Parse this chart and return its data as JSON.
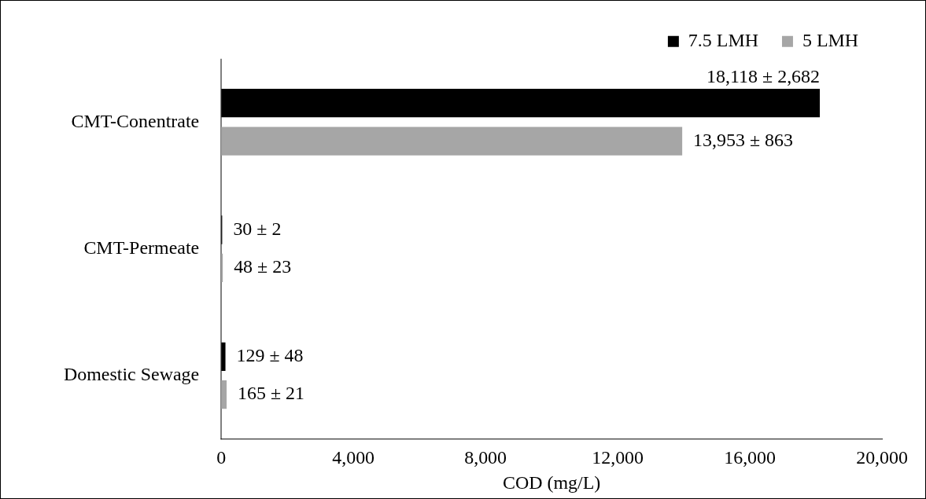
{
  "chart_data": {
    "type": "bar",
    "orientation": "horizontal",
    "xlabel": "COD (mg/L)",
    "categories": [
      "CMT-Conentrate",
      "CMT-Permeate",
      "Domestic Sewage"
    ],
    "series": [
      {
        "name": "7.5 LMH",
        "color": "#000000",
        "values": [
          18118,
          30,
          129
        ],
        "value_labels": [
          "18,118 ± 2,682",
          "30 ± 2",
          "129 ± 48"
        ]
      },
      {
        "name": "5 LMH",
        "color": "#a6a6a6",
        "values": [
          13953,
          48,
          165
        ],
        "value_labels": [
          "13,953 ± 863",
          "48 ± 23",
          "165 ± 21"
        ]
      }
    ],
    "xlim": [
      0,
      20000
    ],
    "xticks": [
      {
        "value": 0,
        "label": "0"
      },
      {
        "value": 4000,
        "label": "4,000"
      },
      {
        "value": 8000,
        "label": "8,000"
      },
      {
        "value": 12000,
        "label": "12,000"
      },
      {
        "value": 16000,
        "label": "16,000"
      },
      {
        "value": 20000,
        "label": "20,000"
      }
    ],
    "grid": false,
    "legend": "top right"
  }
}
